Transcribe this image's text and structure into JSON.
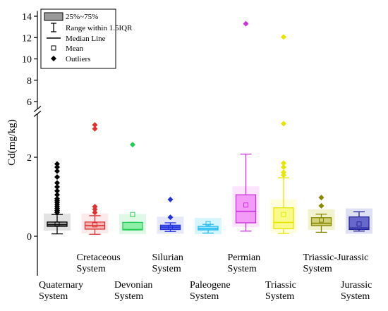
{
  "chart_data": {
    "type": "box",
    "ylabel": "Cd(mg/kg)",
    "y_axis": {
      "broken": true,
      "lower_segment": {
        "range": [
          -1,
          3.1
        ],
        "ticks": [
          0,
          2
        ]
      },
      "upper_segment": {
        "range": [
          5.3,
          14.5
        ],
        "ticks": [
          6,
          8,
          10,
          12,
          14
        ]
      }
    },
    "legend": {
      "position": "top-left",
      "items": [
        {
          "symbol": "box",
          "label": "25%~75%"
        },
        {
          "symbol": "whisker",
          "label": "Range within 1.5IQR"
        },
        {
          "symbol": "median-line",
          "label": "Median Line"
        },
        {
          "symbol": "mean-square",
          "label": "Mean"
        },
        {
          "symbol": "outlier-diamond",
          "label": "Outliers"
        }
      ]
    },
    "series": [
      {
        "label_lines": [
          "Quaternary",
          "System"
        ],
        "label_row": "bottom",
        "color": "#000000",
        "fill": "#9a9a9a",
        "bg": "#d9d9d9",
        "q1": 0.25,
        "median": 0.29,
        "q3": 0.36,
        "whisker_low": 0.06,
        "whisker_high": 0.55,
        "mean": 0.31,
        "outliers": [
          0.6,
          0.65,
          0.7,
          0.75,
          0.8,
          0.85,
          0.9,
          0.95,
          1.05,
          1.15,
          1.25,
          1.35,
          1.5,
          1.65,
          1.75,
          1.83
        ]
      },
      {
        "label_lines": [
          "Cretaceous",
          "System"
        ],
        "label_row": "top",
        "color": "#e03030",
        "fill": "#f7b6b6",
        "bg": "#fbe2e2",
        "q1": 0.18,
        "median": 0.27,
        "q3": 0.36,
        "whisker_low": 0.05,
        "whisker_high": 0.52,
        "mean": 0.29,
        "outliers": [
          0.6,
          0.68,
          0.75,
          2.72,
          2.82
        ]
      },
      {
        "label_lines": [
          "Devonian",
          "System"
        ],
        "label_row": "bottom",
        "color": "#22cc55",
        "fill": "#8ef0a8",
        "bg": "#d4f7de",
        "q1": 0.16,
        "median": 0.17,
        "q3": 0.35,
        "whisker_low": 0.16,
        "whisker_high": 0.35,
        "mean": 0.55,
        "outliers": [
          2.32
        ]
      },
      {
        "label_lines": [
          "Silurian",
          "System"
        ],
        "label_row": "top",
        "color": "#2233dd",
        "fill": "#5566ee",
        "bg": "#dde0fb",
        "q1": 0.17,
        "median": 0.23,
        "q3": 0.28,
        "whisker_low": 0.12,
        "whisker_high": 0.34,
        "mean": 0.23,
        "outliers": [
          0.48,
          0.93
        ]
      },
      {
        "label_lines": [
          "Paleogene",
          "System"
        ],
        "label_row": "bottom",
        "color": "#22bbee",
        "fill": "#99e4fa",
        "bg": "#c9f1fc",
        "q1": 0.16,
        "median": 0.19,
        "q3": 0.25,
        "whisker_low": 0.08,
        "whisker_high": 0.3,
        "mean": 0.32,
        "outliers": []
      },
      {
        "label_lines": [
          "Permian",
          "System"
        ],
        "label_row": "top",
        "color": "#cc33dd",
        "fill": "#f29cf7",
        "bg": "#fbdefd",
        "q1": 0.34,
        "median": 0.63,
        "q3": 1.05,
        "whisker_low": 0.13,
        "whisker_high": 2.08,
        "mean": 0.79,
        "outliers": [
          13.3
        ]
      },
      {
        "label_lines": [
          "Triassic",
          "System"
        ],
        "label_row": "bottom",
        "color": "#e6e600",
        "fill": "#fafa8a",
        "bg": "#fdfdd0",
        "q1": 0.19,
        "median": 0.35,
        "q3": 0.72,
        "whisker_low": 0.07,
        "whisker_high": 1.48,
        "mean": 0.55,
        "outliers": [
          1.55,
          1.62,
          1.75,
          1.85,
          2.85,
          12.05
        ]
      },
      {
        "label_lines": [
          "Triassic-Jurassic",
          "System"
        ],
        "label_row": "top",
        "color": "#888800",
        "fill": "#d1d17a",
        "bg": "#eeeebf",
        "q1": 0.27,
        "median": 0.33,
        "q3": 0.47,
        "whisker_low": 0.1,
        "whisker_high": 0.56,
        "mean": 0.41,
        "outliers": [
          0.77,
          0.98
        ]
      },
      {
        "label_lines": [
          "Jurassic",
          "System"
        ],
        "label_row": "bottom",
        "color": "#232399",
        "fill": "#6868cc",
        "bg": "#d6d6f0",
        "q1": 0.17,
        "median": 0.21,
        "q3": 0.49,
        "whisker_low": 0.13,
        "whisker_high": 0.62,
        "mean": 0.31,
        "outliers": []
      }
    ]
  }
}
